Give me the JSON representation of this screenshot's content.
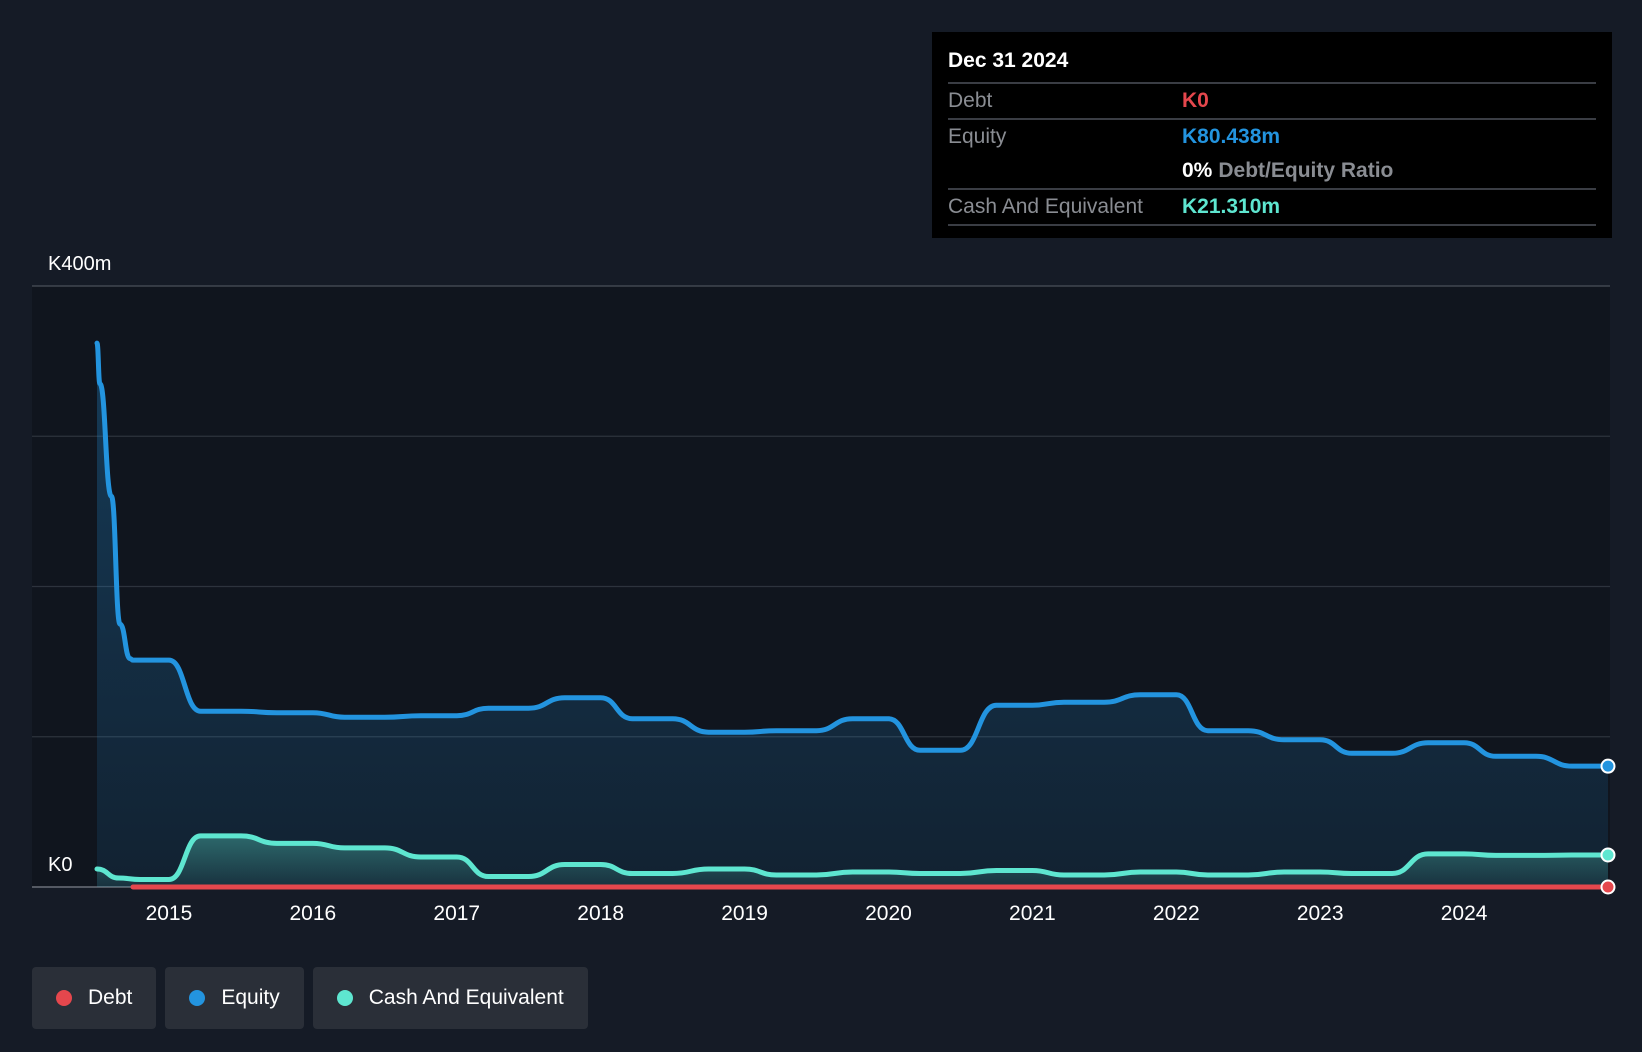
{
  "tooltip": {
    "date": "Dec 31 2024",
    "rows": [
      {
        "label": "Debt",
        "value": "K0"
      },
      {
        "label": "Equity",
        "value": "K80.438m"
      },
      {
        "label": "",
        "value": "0%",
        "suffix": "Debt/Equity Ratio"
      },
      {
        "label": "Cash And Equivalent",
        "value": "K21.310m"
      }
    ]
  },
  "legend": [
    {
      "label": "Debt"
    },
    {
      "label": "Equity"
    },
    {
      "label": "Cash And Equivalent"
    }
  ],
  "colors": {
    "debt": "#e5474d",
    "equity": "#2394df",
    "cash": "#5ee6d0",
    "background": "#151b26",
    "plot_background": "#10151e",
    "grid": "#2d333d"
  },
  "chart_data": {
    "type": "line",
    "y_axis_labels": {
      "top": "K400m",
      "bottom": "K0"
    },
    "ylim": [
      0,
      400
    ],
    "xlim": [
      2014.5,
      2025.0
    ],
    "x_ticks": [
      2015,
      2016,
      2017,
      2018,
      2019,
      2020,
      2021,
      2022,
      2023,
      2024
    ],
    "gridlines": [
      0,
      100,
      200,
      300,
      400
    ],
    "series": [
      {
        "name": "Equity",
        "values": [
          [
            2014.5,
            362
          ],
          [
            2014.52,
            335
          ],
          [
            2014.6,
            260
          ],
          [
            2014.66,
            175
          ],
          [
            2014.73,
            152
          ],
          [
            2014.75,
            151
          ],
          [
            2015.0,
            151
          ],
          [
            2015.22,
            117
          ],
          [
            2015.5,
            117
          ],
          [
            2015.75,
            116
          ],
          [
            2016.0,
            116
          ],
          [
            2016.22,
            113
          ],
          [
            2016.5,
            113
          ],
          [
            2016.75,
            114
          ],
          [
            2017.0,
            114
          ],
          [
            2017.22,
            119
          ],
          [
            2017.5,
            119
          ],
          [
            2017.75,
            126
          ],
          [
            2018.0,
            126
          ],
          [
            2018.22,
            112
          ],
          [
            2018.5,
            112
          ],
          [
            2018.75,
            103
          ],
          [
            2019.0,
            103
          ],
          [
            2019.22,
            104
          ],
          [
            2019.5,
            104
          ],
          [
            2019.75,
            112
          ],
          [
            2020.0,
            112
          ],
          [
            2020.22,
            91
          ],
          [
            2020.5,
            91
          ],
          [
            2020.75,
            121
          ],
          [
            2021.0,
            121
          ],
          [
            2021.22,
            123
          ],
          [
            2021.5,
            123
          ],
          [
            2021.75,
            128
          ],
          [
            2022.0,
            128
          ],
          [
            2022.22,
            104
          ],
          [
            2022.5,
            104
          ],
          [
            2022.75,
            98
          ],
          [
            2023.0,
            98
          ],
          [
            2023.22,
            89
          ],
          [
            2023.5,
            89
          ],
          [
            2023.75,
            96
          ],
          [
            2024.0,
            96
          ],
          [
            2024.22,
            87
          ],
          [
            2024.5,
            87
          ],
          [
            2024.75,
            80.438
          ],
          [
            2025.0,
            80.438
          ]
        ]
      },
      {
        "name": "Cash And Equivalent",
        "values": [
          [
            2014.5,
            12
          ],
          [
            2014.65,
            6
          ],
          [
            2014.8,
            5
          ],
          [
            2015.0,
            5
          ],
          [
            2015.22,
            34
          ],
          [
            2015.5,
            34
          ],
          [
            2015.75,
            29
          ],
          [
            2016.0,
            29
          ],
          [
            2016.22,
            26
          ],
          [
            2016.5,
            26
          ],
          [
            2016.75,
            20
          ],
          [
            2017.0,
            20
          ],
          [
            2017.22,
            7
          ],
          [
            2017.5,
            7
          ],
          [
            2017.75,
            15
          ],
          [
            2018.0,
            15
          ],
          [
            2018.22,
            9
          ],
          [
            2018.5,
            9
          ],
          [
            2018.75,
            12
          ],
          [
            2019.0,
            12
          ],
          [
            2019.22,
            8
          ],
          [
            2019.5,
            8
          ],
          [
            2019.75,
            10
          ],
          [
            2020.0,
            10
          ],
          [
            2020.22,
            9
          ],
          [
            2020.5,
            9
          ],
          [
            2020.75,
            11
          ],
          [
            2021.0,
            11
          ],
          [
            2021.22,
            8
          ],
          [
            2021.5,
            8
          ],
          [
            2021.75,
            10
          ],
          [
            2022.0,
            10
          ],
          [
            2022.22,
            8
          ],
          [
            2022.5,
            8
          ],
          [
            2022.75,
            10
          ],
          [
            2023.0,
            10
          ],
          [
            2023.22,
            9
          ],
          [
            2023.5,
            9
          ],
          [
            2023.75,
            22
          ],
          [
            2024.0,
            22
          ],
          [
            2024.22,
            21
          ],
          [
            2024.5,
            21
          ],
          [
            2024.75,
            21.31
          ],
          [
            2025.0,
            21.31
          ]
        ]
      },
      {
        "name": "Debt",
        "values": [
          [
            2014.75,
            0
          ],
          [
            2025.0,
            0
          ]
        ]
      }
    ]
  }
}
